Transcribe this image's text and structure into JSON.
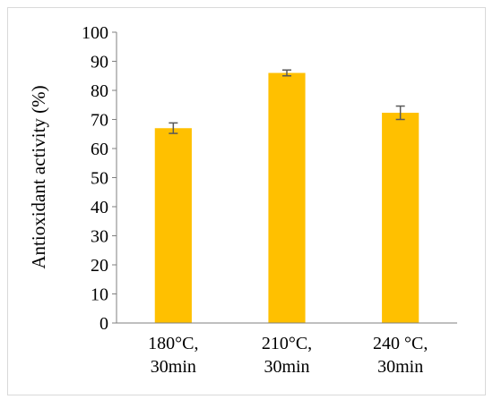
{
  "chart_data": {
    "type": "bar",
    "categories": [
      [
        "180°C,",
        "30min"
      ],
      [
        "210°C,",
        "30min"
      ],
      [
        "240 °C,",
        "30min"
      ]
    ],
    "values": [
      67,
      86,
      72.3
    ],
    "errors": [
      1.8,
      1.0,
      2.3
    ],
    "title": "",
    "xlabel": "",
    "ylabel": "Antioxidant activity (%)",
    "ylim": [
      0,
      100
    ],
    "yticks": [
      "0",
      "10",
      "20",
      "30",
      "40",
      "50",
      "60",
      "70",
      "80",
      "90",
      "100"
    ],
    "grid": false,
    "legend": "none",
    "colors": {
      "bar": "#FFC000",
      "error_bar": "#595959",
      "axis": "#7f7f7f",
      "border": "#d9d9d9"
    }
  }
}
